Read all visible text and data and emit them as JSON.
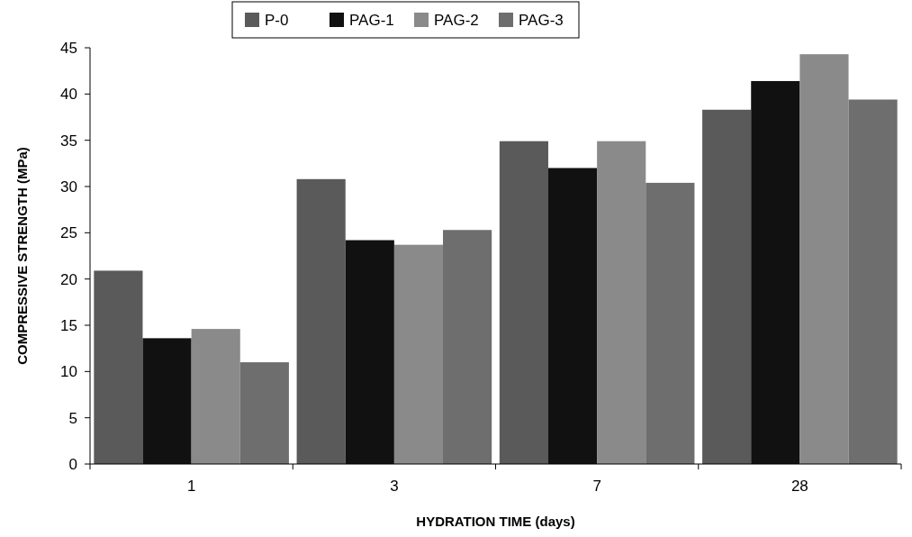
{
  "chart_data": {
    "type": "bar",
    "xlabel": "HYDRATION TIME (days)",
    "ylabel": "COMPRESSIVE STRENGTH (MPa)",
    "categories": [
      "1",
      "3",
      "7",
      "28"
    ],
    "series": [
      {
        "name": "P-0",
        "color": "#5a5a5a",
        "values": [
          20.9,
          30.8,
          34.9,
          38.3
        ]
      },
      {
        "name": "PAG-1",
        "color": "#111111",
        "values": [
          13.6,
          24.2,
          32.0,
          41.4
        ]
      },
      {
        "name": "PAG-2",
        "color": "#8a8a8a",
        "values": [
          14.6,
          23.7,
          34.9,
          44.3
        ]
      },
      {
        "name": "PAG-3",
        "color": "#6e6e6e",
        "values": [
          11.0,
          25.3,
          30.4,
          39.4
        ]
      }
    ],
    "ylim": [
      0,
      45
    ],
    "yticks": [
      0,
      5,
      10,
      15,
      20,
      25,
      30,
      35,
      40,
      45
    ],
    "grid": false,
    "legend": "top"
  }
}
